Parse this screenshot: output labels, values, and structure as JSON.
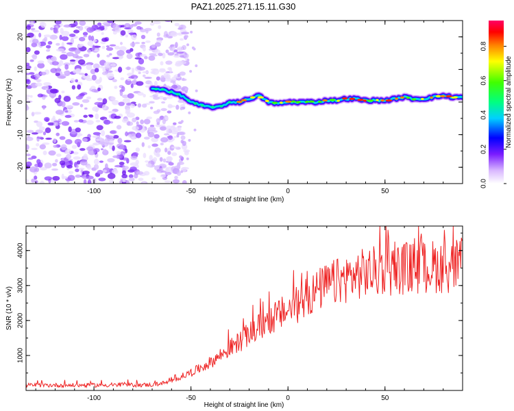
{
  "title": "PAZ1.2025.271.15.11.G30",
  "chart_data": [
    {
      "type": "heatmap",
      "name": "spectrogram",
      "xlabel": "Height of straight line (km)",
      "ylabel": "Frequency (Hz)",
      "xlim": [
        -135,
        90
      ],
      "ylim": [
        -25,
        25
      ],
      "xticks": [
        -100,
        -50,
        0,
        50
      ],
      "xtick_labels": [
        "-100",
        "-50",
        "0",
        "50"
      ],
      "yticks": [
        -20,
        -10,
        0,
        10,
        20
      ],
      "ytick_labels": [
        "-20",
        "-10",
        "0",
        "10",
        "20"
      ],
      "noise_region_x": [
        -135,
        -60
      ],
      "signal_track": {
        "x": [
          -70,
          -65,
          -60,
          -55,
          -50,
          -45,
          -40,
          -35,
          -30,
          -25,
          -20,
          -15,
          -10,
          -5,
          0,
          5,
          10,
          15,
          20,
          25,
          30,
          35,
          40,
          45,
          50,
          55,
          60,
          65,
          70,
          75,
          80,
          85,
          90
        ],
        "freq": [
          4,
          4,
          3,
          2,
          0,
          -1,
          -1.5,
          -1.5,
          0,
          0,
          1,
          2,
          0,
          -0.5,
          0,
          0,
          0,
          0,
          0.5,
          0.5,
          1,
          1,
          0.5,
          0.5,
          0.5,
          1,
          1.5,
          1,
          1,
          1.5,
          2,
          1.5,
          1.5
        ]
      },
      "colorbar": {
        "label": "Normalized spectral amplitude",
        "ticks": [
          0.0,
          0.2,
          0.4,
          0.6,
          0.8
        ],
        "tick_labels": [
          "0.0",
          "0.2",
          "0.4",
          "0.6",
          "0.8"
        ],
        "range": [
          0,
          0.95
        ]
      }
    },
    {
      "type": "line",
      "name": "snr",
      "color": "#ee2222",
      "xlabel": "Height of straight line (km)",
      "ylabel": "SNR (10 * v/v)",
      "xlim": [
        -135,
        90
      ],
      "ylim": [
        0,
        4700
      ],
      "xticks": [
        -100,
        -50,
        0,
        50
      ],
      "xtick_labels": [
        "-100",
        "-50",
        "0",
        "50"
      ],
      "yticks": [
        1000,
        2000,
        3000,
        4000
      ],
      "ytick_labels": [
        "1000",
        "2000",
        "3000",
        "4000"
      ],
      "envelope": {
        "x": [
          -135,
          -100,
          -70,
          -60,
          -55,
          -50,
          -45,
          -40,
          -35,
          -30,
          -25,
          -20,
          -15,
          -10,
          -5,
          0,
          5,
          10,
          15,
          20,
          25,
          30,
          35,
          40,
          45,
          50,
          55,
          60,
          65,
          70,
          75,
          80,
          85,
          90
        ],
        "y": [
          150,
          150,
          160,
          250,
          400,
          500,
          650,
          800,
          1000,
          1200,
          1400,
          1600,
          1800,
          2000,
          2150,
          2300,
          2450,
          2650,
          2850,
          3000,
          3100,
          3200,
          3300,
          3350,
          3400,
          3450,
          3450,
          3500,
          3500,
          3500,
          3550,
          3550,
          3550,
          3600
        ]
      }
    }
  ]
}
